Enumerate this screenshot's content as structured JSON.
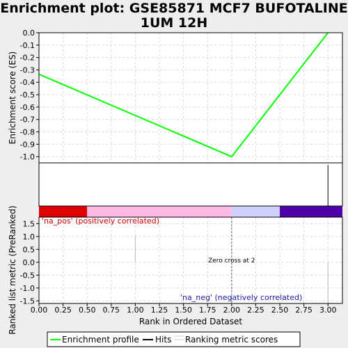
{
  "title_lines": [
    "Enrichment plot: GSE85871 MCF7 BUFOTALINE",
    "1UM 12H"
  ],
  "chart_data": {
    "type": "line",
    "es_panel": {
      "ylabel": "Enrichment score (ES)",
      "ylim": [
        -1.05,
        0.0
      ],
      "yticks": [
        0.0,
        -0.1,
        -0.2,
        -0.3,
        -0.4,
        -0.5,
        -0.6,
        -0.7,
        -0.8,
        -0.9,
        -1.0
      ],
      "ytick_labels": [
        "0.0",
        "-0.1",
        "-0.2",
        "-0.3",
        "-0.4",
        "-0.5",
        "-0.6",
        "-0.7",
        "-0.8",
        "-0.9",
        "-1.0"
      ],
      "series": [
        {
          "name": "Enrichment profile",
          "color": "#00ff00",
          "x": [
            0,
            2,
            3
          ],
          "y": [
            -0.335,
            -1.0,
            0.0
          ]
        }
      ]
    },
    "hits_panel": {
      "hits_x": [
        3
      ],
      "color_bar": [
        {
          "from": 0.0,
          "to": 0.5,
          "color": "#dd0000"
        },
        {
          "from": 0.5,
          "to": 2.0,
          "color": "#ffbbe6"
        },
        {
          "from": 2.0,
          "to": 2.5,
          "color": "#d0d0ff"
        },
        {
          "from": 2.5,
          "to": 3.15,
          "color": "#5000a8"
        }
      ]
    },
    "ranked_panel": {
      "ylabel": "Ranked list metric (PreRanked)",
      "ylim": [
        -1.6,
        1.75
      ],
      "yticks": [
        1.5,
        1.0,
        0.5,
        0.0,
        -0.5,
        -1.0,
        -1.5
      ],
      "ytick_labels": [
        "1.5",
        "1.0",
        "0.5",
        "0.0",
        "-0.5",
        "-1.0",
        "-1.5"
      ],
      "bars": [
        {
          "x": 1,
          "value": 1.0
        },
        {
          "x": 3,
          "value": -1.6
        }
      ],
      "zero_cross_x": 2,
      "annotations": {
        "pos": "'na_pos' (positively correlated)",
        "neg": "'na_neg' (negatively correlated)",
        "zero_cross": "Zero cross at 2"
      }
    },
    "xlabel": "Rank in Ordered Dataset",
    "xlim": [
      0.0,
      3.15
    ],
    "xticks": [
      0.0,
      0.25,
      0.5,
      0.75,
      1.0,
      1.25,
      1.5,
      1.75,
      2.0,
      2.25,
      2.5,
      2.75,
      3.0
    ],
    "xtick_labels": [
      "0.00",
      "0.25",
      "0.50",
      "0.75",
      "1.00",
      "1.25",
      "1.50",
      "1.75",
      "2.00",
      "2.25",
      "2.50",
      "2.75",
      "3.00"
    ],
    "legend": {
      "position": "bottom",
      "items": [
        {
          "label": "Enrichment profile",
          "color": "#00ff00"
        },
        {
          "label": "Hits",
          "color": "#000000"
        },
        {
          "label": "Ranking metric scores",
          "color": "#cccccc"
        }
      ]
    },
    "grid": true
  }
}
